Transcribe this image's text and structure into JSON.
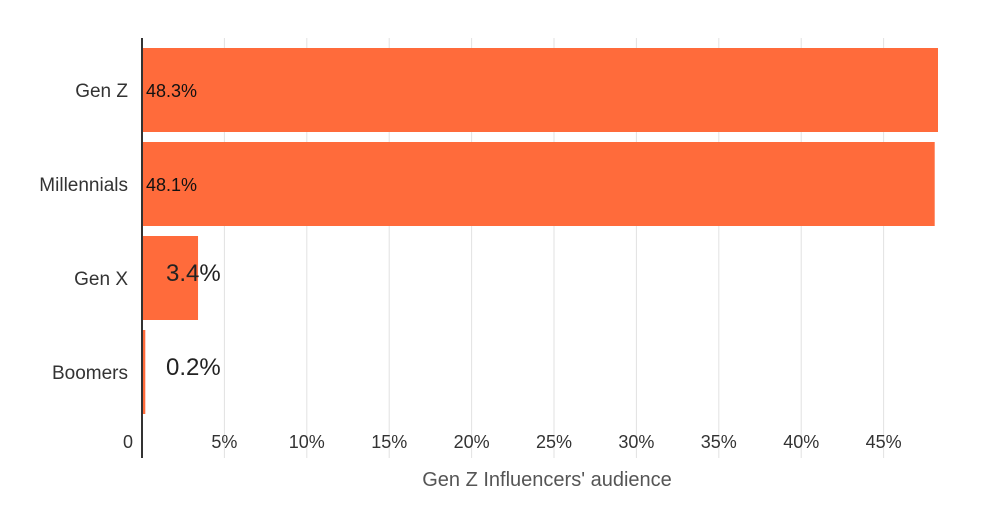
{
  "chart_data": {
    "type": "bar",
    "orientation": "horizontal",
    "categories": [
      "Gen Z",
      "Millennials",
      "Gen X",
      "Boomers"
    ],
    "values": [
      48.3,
      48.1,
      3.4,
      0.2
    ],
    "data_labels": [
      "48.3%",
      "48.1%",
      "3.4%",
      "0.2%"
    ],
    "xlabel": "Gen Z Influencers' audience",
    "xlim": [
      0,
      48.3
    ],
    "x_ticks": [
      0,
      5,
      10,
      15,
      20,
      25,
      30,
      35,
      40,
      45
    ],
    "x_tick_labels": [
      "0",
      "5%",
      "10%",
      "15%",
      "20%",
      "25%",
      "30%",
      "35%",
      "40%",
      "45%"
    ],
    "grid": true,
    "legend": "none",
    "bar_color": "#FF6B3B"
  }
}
